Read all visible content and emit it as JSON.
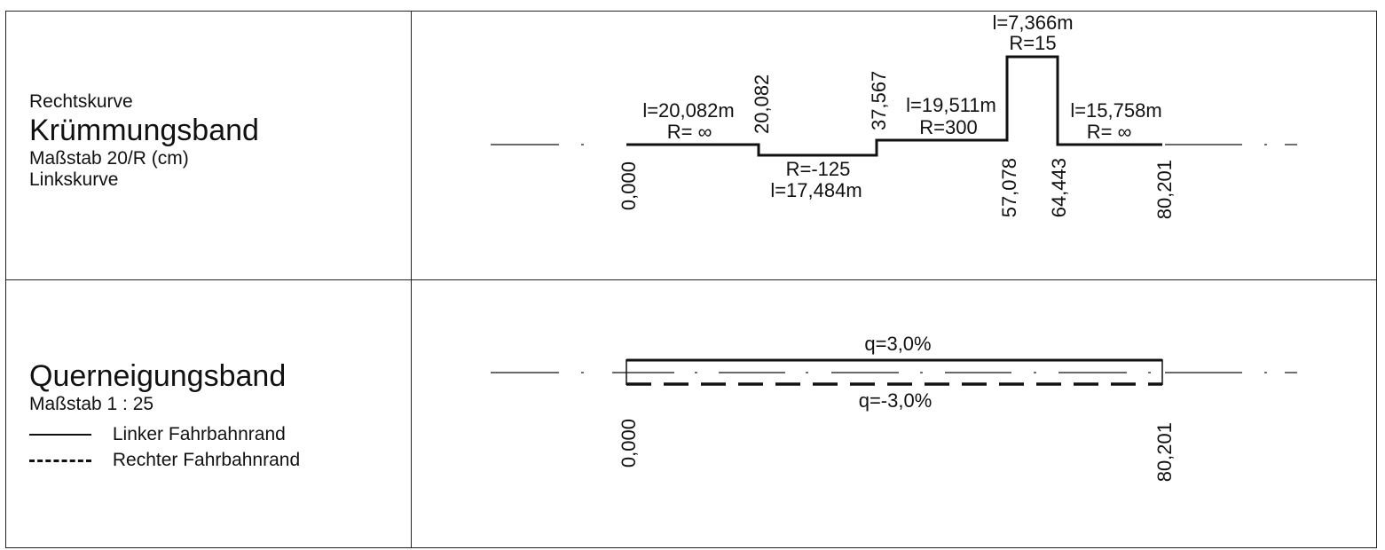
{
  "kruemmungsband": {
    "top_note": "Rechtskurve",
    "title": "Krümmungsband",
    "scale": "Maßstab 20/R (cm)",
    "bottom_note": "Linkskurve",
    "stations": [
      "0,000",
      "20,082",
      "37,567",
      "57,078",
      "64,443",
      "80,201"
    ],
    "segments": [
      {
        "from": "0,000",
        "to": "20,082",
        "length": "l=20,082m",
        "radius": "R= ∞"
      },
      {
        "from": "20,082",
        "to": "37,567",
        "length": "l=17,484m",
        "radius": "R=-125"
      },
      {
        "from": "37,567",
        "to": "57,078",
        "length": "l=19,511m",
        "radius": "R=300"
      },
      {
        "from": "57,078",
        "to": "64,443",
        "length": "l=7,366m",
        "radius": "R=15"
      },
      {
        "from": "64,443",
        "to": "80,201",
        "length": "l=15,758m",
        "radius": "R= ∞"
      }
    ]
  },
  "querneigungsband": {
    "title": "Querneigungsband",
    "scale": "Maßstab 1 : 25",
    "legend": [
      {
        "label": "Linker Fahrbahnrand",
        "style": "solid"
      },
      {
        "label": "Rechter Fahrbahnrand",
        "style": "dashed"
      }
    ],
    "q_left": "q=3,0%",
    "q_right": "q=-3,0%",
    "stations": [
      "0,000",
      "80,201"
    ]
  },
  "colors": {
    "line": "#111111",
    "frame": "#222222",
    "background": "#ffffff"
  }
}
